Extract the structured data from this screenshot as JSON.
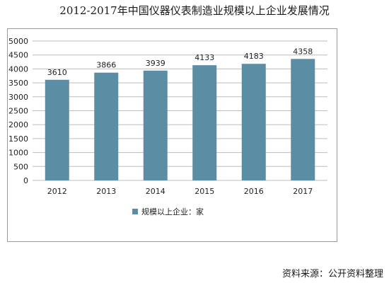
{
  "title": "2012-2017年中国仪器仪表制造业规模以上企业发展情况",
  "source": "资料来源：公开资料整理",
  "chart_data": {
    "type": "bar",
    "title": "2012-2017年中国仪器仪表制造业规模以上企业发展情况",
    "categories": [
      "2012",
      "2013",
      "2014",
      "2015",
      "2016",
      "2017"
    ],
    "series": [
      {
        "name": "规模以上企业：家",
        "values": [
          3610,
          3866,
          3939,
          4133,
          4183,
          4358
        ],
        "color": "#5b8ea4"
      }
    ],
    "data_labels": [
      "3610",
      "3866",
      "3939",
      "4133",
      "4183",
      "4358"
    ],
    "y_ticks": [
      "0",
      "500",
      "1000",
      "1500",
      "2000",
      "2500",
      "3000",
      "3500",
      "4000",
      "4500",
      "5000"
    ],
    "ylim": [
      0,
      5000
    ],
    "grid": true,
    "legend_position": "bottom"
  }
}
